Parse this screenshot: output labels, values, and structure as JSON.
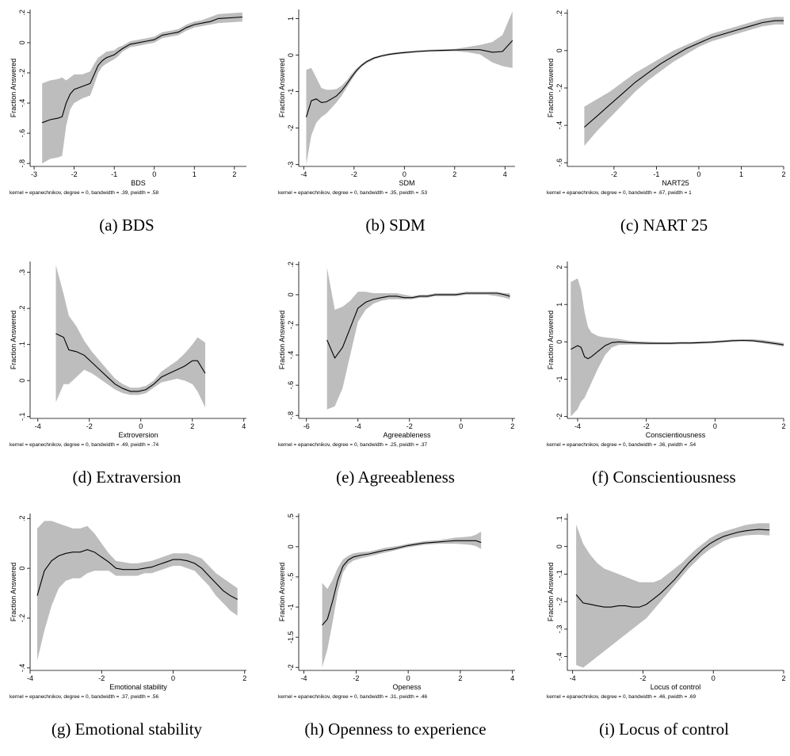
{
  "chart_data": [
    {
      "type": "area",
      "caption": "(a) BDS",
      "xlabel": "BDS",
      "ylabel": "Fraction Answered",
      "note": "kernel = epanechnikov, degree = 0, bandwidth = .39, pwidth = .58",
      "xlim": [
        -3.1,
        2.3
      ],
      "ylim": [
        -0.82,
        0.22
      ],
      "xticks": [
        -3,
        -2,
        -1,
        0,
        1,
        2
      ],
      "xtick_labels": [
        "-3",
        "-2",
        "-1",
        "0",
        "1",
        "2"
      ],
      "yticks": [
        -0.8,
        -0.6,
        -0.4,
        -0.2,
        0,
        0.2
      ],
      "ytick_labels": [
        "-.8",
        "-.6",
        "-.4",
        "-.2",
        "0",
        ".2"
      ],
      "x": [
        -2.8,
        -2.6,
        -2.4,
        -2.3,
        -2.2,
        -2.1,
        -2.0,
        -1.8,
        -1.6,
        -1.5,
        -1.4,
        -1.3,
        -1.2,
        -1.0,
        -0.9,
        -0.8,
        -0.6,
        -0.4,
        -0.2,
        0,
        0.2,
        0.4,
        0.6,
        0.8,
        1.0,
        1.2,
        1.4,
        1.6,
        2.2
      ],
      "y": [
        -0.53,
        -0.51,
        -0.5,
        -0.49,
        -0.4,
        -0.34,
        -0.31,
        -0.29,
        -0.27,
        -0.21,
        -0.15,
        -0.12,
        -0.1,
        -0.08,
        -0.06,
        -0.04,
        -0.01,
        0.0,
        0.01,
        0.02,
        0.05,
        0.06,
        0.07,
        0.1,
        0.12,
        0.13,
        0.14,
        0.16,
        0.17
      ],
      "lower": [
        -0.8,
        -0.77,
        -0.76,
        -0.75,
        -0.55,
        -0.44,
        -0.4,
        -0.37,
        -0.35,
        -0.28,
        -0.2,
        -0.16,
        -0.14,
        -0.11,
        -0.09,
        -0.06,
        -0.03,
        -0.02,
        -0.01,
        0.0,
        0.03,
        0.04,
        0.05,
        0.08,
        0.1,
        0.11,
        0.12,
        0.13,
        0.14
      ],
      "upper": [
        -0.27,
        -0.25,
        -0.24,
        -0.23,
        -0.25,
        -0.23,
        -0.21,
        -0.21,
        -0.19,
        -0.14,
        -0.1,
        -0.08,
        -0.06,
        -0.05,
        -0.03,
        -0.02,
        0.01,
        0.02,
        0.03,
        0.04,
        0.07,
        0.08,
        0.09,
        0.12,
        0.14,
        0.15,
        0.17,
        0.19,
        0.2
      ]
    },
    {
      "type": "area",
      "caption": "(b) SDM",
      "xlabel": "SDM",
      "ylabel": "Fraction Answered",
      "note": "kernel = epanechnikov, degree = 0, bandwidth = .35, pwidth = .53",
      "xlim": [
        -4.2,
        4.4
      ],
      "ylim": [
        -3.05,
        1.25
      ],
      "xticks": [
        -4,
        -2,
        0,
        2,
        4
      ],
      "xtick_labels": [
        "-4",
        "-2",
        "0",
        "2",
        "4"
      ],
      "yticks": [
        -3,
        -2,
        -1,
        0,
        1
      ],
      "ytick_labels": [
        "-3",
        "-2",
        "-1",
        "0",
        "1"
      ],
      "x": [
        -3.9,
        -3.7,
        -3.5,
        -3.3,
        -3.1,
        -2.9,
        -2.7,
        -2.5,
        -2.3,
        -2.1,
        -1.9,
        -1.7,
        -1.5,
        -1.2,
        -0.9,
        -0.6,
        -0.3,
        0,
        0.5,
        1.0,
        1.5,
        2.0,
        2.5,
        3.0,
        3.5,
        3.9,
        4.3
      ],
      "y": [
        -1.7,
        -1.25,
        -1.2,
        -1.3,
        -1.28,
        -1.2,
        -1.12,
        -0.98,
        -0.8,
        -0.6,
        -0.42,
        -0.28,
        -0.18,
        -0.08,
        -0.02,
        0.02,
        0.05,
        0.07,
        0.1,
        0.12,
        0.13,
        0.14,
        0.15,
        0.15,
        0.08,
        0.1,
        0.4
      ],
      "lower": [
        -3.0,
        -2.2,
        -1.85,
        -1.7,
        -1.6,
        -1.45,
        -1.3,
        -1.12,
        -0.9,
        -0.68,
        -0.48,
        -0.32,
        -0.22,
        -0.11,
        -0.05,
        -0.01,
        0.02,
        0.04,
        0.07,
        0.09,
        0.1,
        0.11,
        0.08,
        0.02,
        -0.2,
        -0.3,
        -0.35
      ],
      "upper": [
        -0.4,
        -0.35,
        -0.62,
        -0.9,
        -0.95,
        -0.95,
        -0.93,
        -0.84,
        -0.7,
        -0.52,
        -0.36,
        -0.24,
        -0.14,
        -0.05,
        0.01,
        0.05,
        0.08,
        0.1,
        0.13,
        0.15,
        0.16,
        0.17,
        0.22,
        0.28,
        0.36,
        0.55,
        1.2
      ]
    },
    {
      "type": "area",
      "caption": "(c) NART 25",
      "xlabel": "NART25",
      "ylabel": "Fraction Answered",
      "note": "kernel = epanechnikov, degree = 0, bandwidth = .67, pwidth = 1",
      "xlim": [
        -3.1,
        2.0
      ],
      "ylim": [
        -0.62,
        0.22
      ],
      "xticks": [
        -2,
        -1,
        0,
        1,
        2
      ],
      "xtick_labels": [
        "-2",
        "-1",
        "0",
        "1",
        "2"
      ],
      "yticks": [
        -0.6,
        -0.4,
        -0.2,
        0,
        0.2
      ],
      "ytick_labels": [
        "-.6",
        "-.4",
        "-.2",
        "0",
        ".2"
      ],
      "x": [
        -2.7,
        -2.4,
        -2.1,
        -1.8,
        -1.5,
        -1.2,
        -0.9,
        -0.6,
        -0.3,
        0,
        0.3,
        0.6,
        0.9,
        1.2,
        1.5,
        1.8,
        2.0
      ],
      "y": [
        -0.41,
        -0.35,
        -0.29,
        -0.23,
        -0.17,
        -0.12,
        -0.07,
        -0.03,
        0.01,
        0.04,
        0.07,
        0.09,
        0.11,
        0.13,
        0.15,
        0.16,
        0.16
      ],
      "lower": [
        -0.51,
        -0.43,
        -0.36,
        -0.29,
        -0.22,
        -0.16,
        -0.11,
        -0.06,
        -0.02,
        0.02,
        0.05,
        0.07,
        0.09,
        0.11,
        0.13,
        0.14,
        0.14
      ],
      "upper": [
        -0.3,
        -0.26,
        -0.22,
        -0.17,
        -0.12,
        -0.08,
        -0.04,
        0.0,
        0.03,
        0.06,
        0.09,
        0.11,
        0.13,
        0.15,
        0.17,
        0.18,
        0.18
      ]
    },
    {
      "type": "area",
      "caption": "(d) Extraversion",
      "xlabel": "Extroversion",
      "ylabel": "Fraction Answered",
      "note": "kernel = epanechnikov, degree = 0, bandwidth = .49, pwidth = .74",
      "xlim": [
        -4.3,
        4.1
      ],
      "ylim": [
        -0.105,
        0.33
      ],
      "xticks": [
        -4,
        -2,
        0,
        2,
        4
      ],
      "xtick_labels": [
        "-4",
        "-2",
        "0",
        "2",
        "4"
      ],
      "yticks": [
        -0.1,
        0,
        0.1,
        0.2,
        0.3
      ],
      "ytick_labels": [
        "-.1",
        "0",
        ".1",
        ".2",
        ".3"
      ],
      "x": [
        -3.3,
        -3.0,
        -2.8,
        -2.5,
        -2.2,
        -1.9,
        -1.6,
        -1.3,
        -1.0,
        -0.7,
        -0.4,
        -0.1,
        0.2,
        0.5,
        0.8,
        1.1,
        1.4,
        1.7,
        2.0,
        2.2,
        2.5
      ],
      "y": [
        0.13,
        0.12,
        0.085,
        0.08,
        0.07,
        0.05,
        0.03,
        0.01,
        -0.01,
        -0.022,
        -0.03,
        -0.03,
        -0.025,
        -0.01,
        0.01,
        0.02,
        0.03,
        0.04,
        0.055,
        0.055,
        0.02
      ],
      "lower": [
        -0.06,
        -0.01,
        -0.01,
        0.01,
        0.03,
        0.02,
        0.005,
        -0.01,
        -0.025,
        -0.035,
        -0.04,
        -0.04,
        -0.035,
        -0.02,
        -0.005,
        0.0,
        0.005,
        0.0,
        -0.01,
        -0.03,
        -0.075
      ],
      "upper": [
        0.32,
        0.24,
        0.18,
        0.15,
        0.11,
        0.08,
        0.055,
        0.03,
        0.005,
        -0.01,
        -0.02,
        -0.02,
        -0.015,
        0.0,
        0.025,
        0.04,
        0.055,
        0.075,
        0.1,
        0.12,
        0.105
      ]
    },
    {
      "type": "area",
      "caption": "(e) Agreeableness",
      "xlabel": "Agreeableness",
      "ylabel": "Fraction Answered",
      "note": "kernel = epanechnikov, degree = 0, bandwidth = .25, pwidth = .37",
      "xlim": [
        -6.3,
        2.1
      ],
      "ylim": [
        -0.82,
        0.22
      ],
      "xticks": [
        -6,
        -4,
        -2,
        0,
        2
      ],
      "xtick_labels": [
        "-6",
        "-4",
        "-2",
        "0",
        "2"
      ],
      "yticks": [
        -0.8,
        -0.6,
        -0.4,
        -0.2,
        0,
        0.2
      ],
      "ytick_labels": [
        "-.8",
        "-.6",
        "-.4",
        "-.2",
        "0",
        ".2"
      ],
      "x": [
        -5.2,
        -4.9,
        -4.6,
        -4.3,
        -4.0,
        -3.7,
        -3.4,
        -3.1,
        -2.8,
        -2.5,
        -2.2,
        -1.9,
        -1.6,
        -1.3,
        -1.0,
        -0.6,
        -0.2,
        0.2,
        0.6,
        1.0,
        1.4,
        1.7,
        1.9
      ],
      "y": [
        -0.3,
        -0.42,
        -0.35,
        -0.22,
        -0.09,
        -0.05,
        -0.03,
        -0.02,
        -0.01,
        -0.01,
        -0.02,
        -0.02,
        -0.01,
        -0.01,
        0.0,
        0.0,
        0.0,
        0.01,
        0.01,
        0.01,
        0.01,
        0.0,
        -0.01
      ],
      "lower": [
        -0.76,
        -0.74,
        -0.62,
        -0.4,
        -0.18,
        -0.1,
        -0.06,
        -0.04,
        -0.03,
        -0.03,
        -0.03,
        -0.03,
        -0.02,
        -0.02,
        -0.01,
        -0.01,
        -0.01,
        0.0,
        0.0,
        0.0,
        -0.01,
        -0.02,
        -0.03
      ],
      "upper": [
        0.18,
        -0.1,
        -0.08,
        -0.04,
        0.02,
        0.02,
        0.01,
        0.01,
        0.01,
        0.01,
        0.0,
        -0.01,
        0.0,
        0.0,
        0.01,
        0.01,
        0.01,
        0.02,
        0.02,
        0.02,
        0.02,
        0.01,
        0.01
      ]
    },
    {
      "type": "area",
      "caption": "(f) Conscientiousness",
      "xlabel": "Conscientiousness",
      "ylabel": "Fraction Answered",
      "note": "kernel = epanechnikov, degree = 0, bandwidth = .36, pwidth = .54",
      "xlim": [
        -4.3,
        2.0
      ],
      "ylim": [
        -2.05,
        2.15
      ],
      "xticks": [
        -4,
        -2,
        0,
        2
      ],
      "xtick_labels": [
        "-4",
        "-2",
        "0",
        "2"
      ],
      "yticks": [
        -2,
        -1,
        0,
        1,
        2
      ],
      "ytick_labels": [
        "-2",
        "-1",
        "0",
        "1",
        "2"
      ],
      "x": [
        -4.2,
        -4.0,
        -3.9,
        -3.8,
        -3.7,
        -3.6,
        -3.4,
        -3.2,
        -3.0,
        -2.8,
        -2.5,
        -2.2,
        -1.9,
        -1.6,
        -1.3,
        -1.0,
        -0.7,
        -0.4,
        -0.1,
        0.2,
        0.5,
        0.8,
        1.1,
        1.4,
        1.7,
        2.0
      ],
      "y": [
        -0.2,
        -0.1,
        -0.15,
        -0.4,
        -0.45,
        -0.4,
        -0.25,
        -0.1,
        -0.02,
        0.0,
        -0.02,
        -0.03,
        -0.04,
        -0.04,
        -0.04,
        -0.03,
        -0.03,
        -0.02,
        -0.01,
        0.01,
        0.03,
        0.04,
        0.03,
        0.0,
        -0.04,
        -0.08
      ],
      "lower": [
        -2.0,
        -1.8,
        -1.6,
        -1.5,
        -1.3,
        -1.1,
        -0.7,
        -0.35,
        -0.15,
        -0.08,
        -0.07,
        -0.07,
        -0.07,
        -0.07,
        -0.07,
        -0.06,
        -0.06,
        -0.05,
        -0.04,
        -0.02,
        0.0,
        0.01,
        0.0,
        -0.04,
        -0.08,
        -0.13
      ],
      "upper": [
        1.6,
        1.7,
        1.4,
        0.8,
        0.4,
        0.25,
        0.15,
        0.12,
        0.1,
        0.08,
        0.03,
        0.01,
        0.0,
        -0.01,
        -0.01,
        0.0,
        0.0,
        0.01,
        0.02,
        0.04,
        0.06,
        0.07,
        0.07,
        0.05,
        0.01,
        -0.03
      ]
    },
    {
      "type": "area",
      "caption": "(g) Emotional stability",
      "xlabel": "Emotional stability",
      "ylabel": "Fraction Answered",
      "note": "kernel = epanechnikov, degree = 0, bandwidth = .37, pwidth = .56",
      "xlim": [
        -4.0,
        2.05
      ],
      "ylim": [
        -0.41,
        0.22
      ],
      "xticks": [
        -4,
        -2,
        0,
        2
      ],
      "xtick_labels": [
        "-4",
        "-2",
        "0",
        "2"
      ],
      "yticks": [
        -0.4,
        -0.2,
        0,
        0.2
      ],
      "ytick_labels": [
        "-.4",
        "-.2",
        "0",
        ".2"
      ],
      "x": [
        -3.8,
        -3.6,
        -3.4,
        -3.2,
        -3.0,
        -2.8,
        -2.6,
        -2.4,
        -2.2,
        -2.0,
        -1.8,
        -1.6,
        -1.4,
        -1.2,
        -1.0,
        -0.8,
        -0.6,
        -0.4,
        -0.2,
        0,
        0.2,
        0.4,
        0.6,
        0.8,
        1.0,
        1.2,
        1.4,
        1.6,
        1.8
      ],
      "y": [
        -0.11,
        -0.01,
        0.03,
        0.05,
        0.06,
        0.065,
        0.065,
        0.075,
        0.065,
        0.045,
        0.025,
        0.0,
        -0.005,
        -0.005,
        -0.005,
        0.0,
        0.005,
        0.015,
        0.025,
        0.035,
        0.035,
        0.03,
        0.02,
        0.0,
        -0.03,
        -0.06,
        -0.09,
        -0.11,
        -0.125
      ],
      "lower": [
        -0.37,
        -0.25,
        -0.15,
        -0.08,
        -0.05,
        -0.04,
        -0.04,
        -0.02,
        -0.01,
        -0.01,
        -0.01,
        -0.03,
        -0.03,
        -0.03,
        -0.03,
        -0.02,
        -0.02,
        -0.01,
        0.0,
        0.01,
        0.01,
        0.0,
        -0.01,
        -0.04,
        -0.07,
        -0.11,
        -0.14,
        -0.17,
        -0.19
      ],
      "upper": [
        0.16,
        0.19,
        0.19,
        0.18,
        0.17,
        0.16,
        0.16,
        0.17,
        0.14,
        0.1,
        0.06,
        0.03,
        0.025,
        0.02,
        0.02,
        0.025,
        0.03,
        0.04,
        0.05,
        0.06,
        0.06,
        0.06,
        0.05,
        0.04,
        0.01,
        -0.02,
        -0.04,
        -0.06,
        -0.08
      ]
    },
    {
      "type": "area",
      "caption": "(h) Openness to experience",
      "xlabel": "Openess",
      "ylabel": "Fraction Answered",
      "note": "kernel = epanechnikov, degree = 0, bandwidth = .31, pwidth = .46",
      "xlim": [
        -4.2,
        4.1
      ],
      "ylim": [
        -2.05,
        0.55
      ],
      "xticks": [
        -4,
        -2,
        0,
        2,
        4
      ],
      "xtick_labels": [
        "-4",
        "-2",
        "0",
        "2",
        "4"
      ],
      "yticks": [
        -2,
        -1.5,
        -1,
        -0.5,
        0,
        0.5
      ],
      "ytick_labels": [
        "-2",
        "-1.5",
        "-1",
        "-.5",
        "0",
        ".5"
      ],
      "x": [
        -3.3,
        -3.1,
        -2.9,
        -2.7,
        -2.5,
        -2.3,
        -2.1,
        -1.8,
        -1.5,
        -1.2,
        -0.9,
        -0.6,
        -0.3,
        0,
        0.3,
        0.6,
        0.9,
        1.2,
        1.5,
        1.8,
        2.1,
        2.4,
        2.6,
        2.8
      ],
      "y": [
        -1.3,
        -1.2,
        -0.9,
        -0.55,
        -0.32,
        -0.22,
        -0.17,
        -0.14,
        -0.12,
        -0.09,
        -0.06,
        -0.04,
        -0.01,
        0.02,
        0.04,
        0.06,
        0.07,
        0.08,
        0.09,
        0.1,
        0.1,
        0.1,
        0.1,
        0.07
      ],
      "lower": [
        -2.0,
        -1.7,
        -1.25,
        -0.75,
        -0.43,
        -0.29,
        -0.23,
        -0.19,
        -0.16,
        -0.13,
        -0.1,
        -0.07,
        -0.04,
        -0.01,
        0.01,
        0.03,
        0.04,
        0.05,
        0.05,
        0.05,
        0.04,
        0.03,
        0.01,
        -0.04
      ],
      "upper": [
        -0.6,
        -0.7,
        -0.55,
        -0.35,
        -0.21,
        -0.15,
        -0.11,
        -0.09,
        -0.08,
        -0.05,
        -0.02,
        0.0,
        0.02,
        0.05,
        0.07,
        0.09,
        0.1,
        0.11,
        0.13,
        0.15,
        0.16,
        0.17,
        0.2,
        0.25
      ]
    },
    {
      "type": "area",
      "caption": "(i) Locus of control",
      "xlabel": "Locus of control",
      "ylabel": "Fraction Answered",
      "note": "kernel = epanechnikov, degree = 0, bandwidth = .46, pwidth = .69",
      "xlim": [
        -4.15,
        2.0
      ],
      "ylim": [
        -0.45,
        0.12
      ],
      "xticks": [
        -4,
        -2,
        0,
        2
      ],
      "xtick_labels": [
        "-4",
        "-2",
        "0",
        "2"
      ],
      "yticks": [
        -0.4,
        -0.3,
        -0.2,
        -0.1,
        0,
        0.1
      ],
      "ytick_labels": [
        "-.4",
        "-.3",
        "-.2",
        "-.1",
        "0",
        ".1"
      ],
      "x": [
        -3.9,
        -3.7,
        -3.5,
        -3.3,
        -3.1,
        -2.9,
        -2.7,
        -2.5,
        -2.3,
        -2.1,
        -1.9,
        -1.7,
        -1.5,
        -1.3,
        -1.1,
        -0.9,
        -0.7,
        -0.5,
        -0.3,
        -0.1,
        0.1,
        0.3,
        0.5,
        0.7,
        0.9,
        1.1,
        1.3,
        1.6
      ],
      "y": [
        -0.175,
        -0.205,
        -0.21,
        -0.215,
        -0.22,
        -0.22,
        -0.215,
        -0.215,
        -0.22,
        -0.22,
        -0.21,
        -0.19,
        -0.17,
        -0.145,
        -0.12,
        -0.09,
        -0.06,
        -0.035,
        -0.01,
        0.01,
        0.025,
        0.037,
        0.045,
        0.052,
        0.057,
        0.06,
        0.062,
        0.06
      ],
      "lower": [
        -0.43,
        -0.44,
        -0.42,
        -0.4,
        -0.38,
        -0.36,
        -0.34,
        -0.32,
        -0.3,
        -0.28,
        -0.26,
        -0.23,
        -0.2,
        -0.17,
        -0.14,
        -0.11,
        -0.08,
        -0.055,
        -0.03,
        -0.01,
        0.005,
        0.02,
        0.03,
        0.035,
        0.04,
        0.042,
        0.043,
        0.04
      ],
      "upper": [
        0.08,
        0.01,
        -0.03,
        -0.06,
        -0.08,
        -0.09,
        -0.1,
        -0.11,
        -0.12,
        -0.13,
        -0.13,
        -0.13,
        -0.12,
        -0.1,
        -0.08,
        -0.06,
        -0.035,
        -0.01,
        0.01,
        0.03,
        0.045,
        0.055,
        0.062,
        0.07,
        0.078,
        0.082,
        0.085,
        0.085
      ]
    }
  ]
}
